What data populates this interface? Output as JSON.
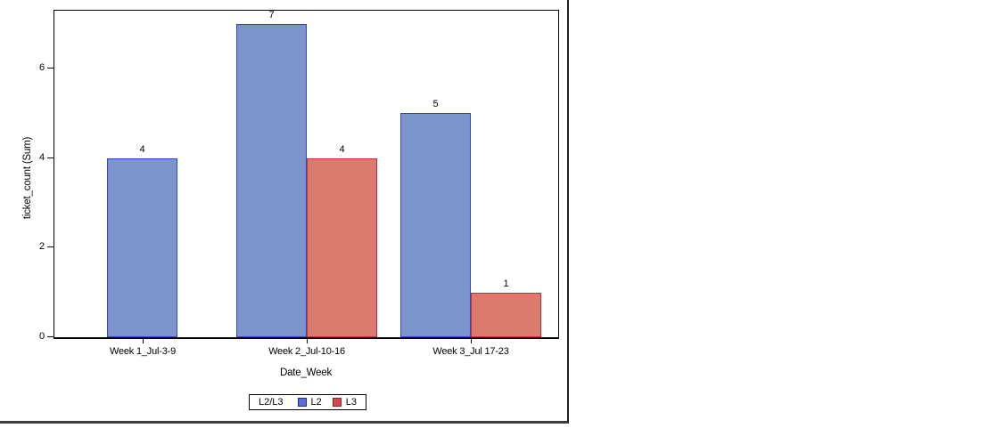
{
  "window": {
    "kind": "chart-output-window"
  },
  "chart_data": {
    "type": "bar",
    "title": "",
    "categories": [
      "Week 1_Jul-3-9",
      "Week 2_Jul-10-16",
      "Week 3_Jul 17-23"
    ],
    "series": [
      {
        "name": "L2",
        "values": [
          4,
          7,
          5
        ],
        "fill": "#7B94CC",
        "border": "#3444BE",
        "swatch_fill": "#5C6FD2",
        "swatch_border": "#1E2C96"
      },
      {
        "name": "L3",
        "values": [
          null,
          4,
          1
        ],
        "fill": "#DB7B6E",
        "border": "#C22E47",
        "swatch_fill": "#CE4B50",
        "swatch_border": "#991E2A"
      }
    ],
    "xlabel": "Date_Week",
    "ylabel": "ticket_count (Sum)",
    "yticks": [
      0,
      2,
      4,
      6
    ],
    "ylim": [
      0,
      7.36
    ],
    "grid": false,
    "value_labels": [
      4,
      7,
      4,
      5,
      1
    ],
    "legend": {
      "title": "L2/L3",
      "position": "bottom",
      "entries": [
        "L2",
        "L3"
      ]
    },
    "colors": {
      "axis": "#000000",
      "text": "#000000",
      "frame": "#000000"
    }
  }
}
